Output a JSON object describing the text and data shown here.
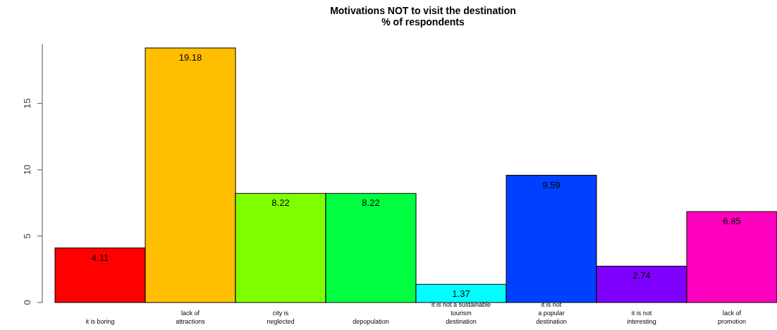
{
  "chart_data": {
    "type": "bar",
    "title": "Motivations NOT to visit the destination\n% of respondents",
    "categories": [
      "it is boring",
      "lack of\nattractions",
      "city is\nneglected",
      "depopulation",
      "it is not a sustainable\ntourism\ndestination",
      "it is not\na popular\ndestination",
      "it is not\ninteresting",
      "lack of\npromotion"
    ],
    "values": [
      4.11,
      19.18,
      8.22,
      8.22,
      1.37,
      9.59,
      2.74,
      6.85
    ],
    "colors": [
      "#ff0000",
      "#ffbf00",
      "#80ff00",
      "#00ff40",
      "#00ffff",
      "#0040ff",
      "#8000ff",
      "#ff00bf"
    ],
    "ylim": [
      0,
      19.5
    ],
    "yticks": [
      0,
      5,
      10,
      15
    ],
    "data_labels": true
  }
}
